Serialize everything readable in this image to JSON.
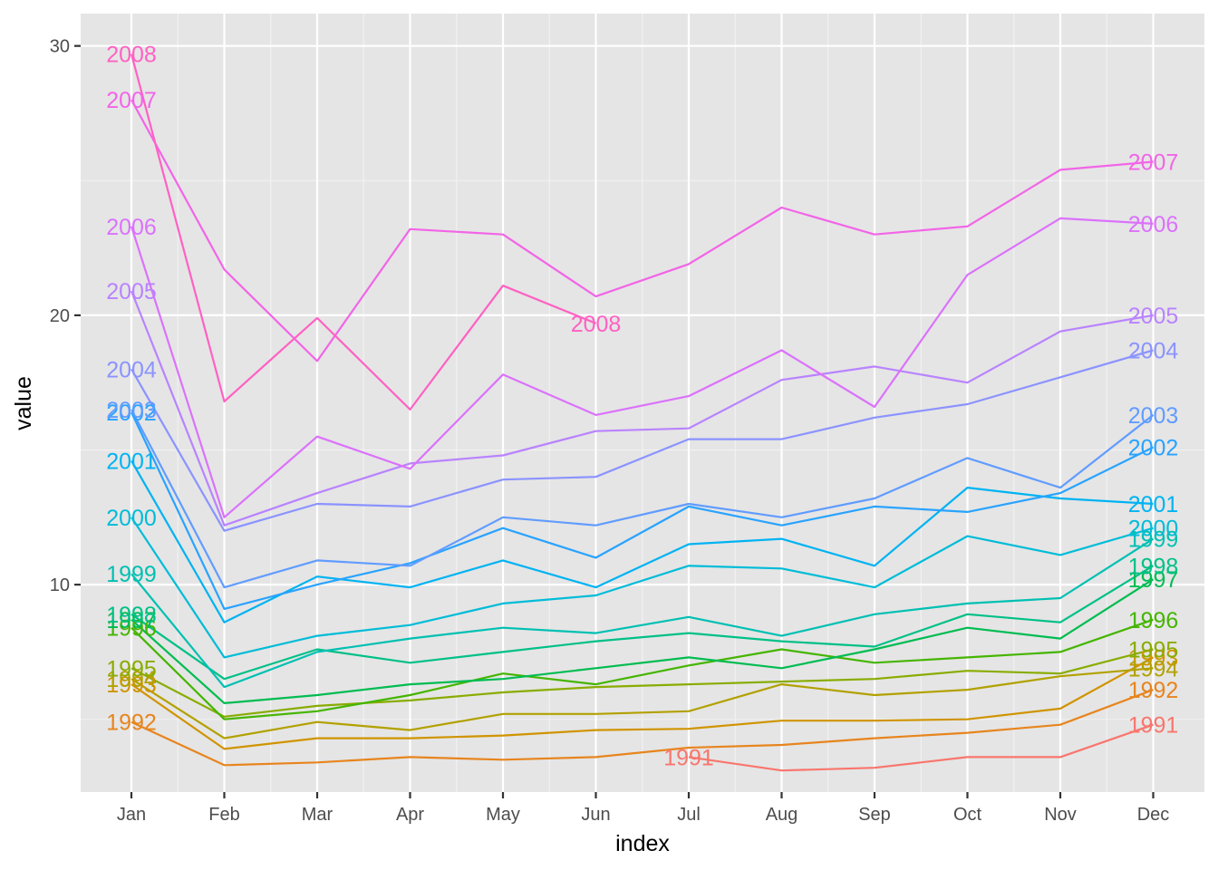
{
  "chart_data": {
    "type": "line",
    "title": "",
    "xlabel": "index",
    "ylabel": "value",
    "categories": [
      "Jan",
      "Feb",
      "Mar",
      "Apr",
      "May",
      "Jun",
      "Jul",
      "Aug",
      "Sep",
      "Oct",
      "Nov",
      "Dec"
    ],
    "y_ticks": [
      "10",
      "20",
      "30"
    ],
    "ylim": [
      2.3,
      31.2
    ],
    "grid": true,
    "legend": "none",
    "series": [
      {
        "name": "1991",
        "color": "#F8766D",
        "values": [
          null,
          null,
          null,
          null,
          null,
          null,
          3.6,
          3.1,
          3.2,
          3.6,
          3.6,
          4.8
        ],
        "label_start_index": 6,
        "label_end_index": 11
      },
      {
        "name": "1992",
        "color": "#E7851E",
        "values": [
          4.9,
          3.3,
          3.4,
          3.6,
          3.5,
          3.6,
          3.95,
          4.05,
          4.3,
          4.5,
          4.8,
          6.1
        ],
        "label_start_index": 0,
        "label_end_index": 11
      },
      {
        "name": "1993",
        "color": "#D09400",
        "values": [
          6.3,
          3.9,
          4.3,
          4.3,
          4.4,
          4.6,
          4.65,
          4.95,
          4.95,
          5.0,
          5.4,
          7.3
        ],
        "label_start_index": 0,
        "label_end_index": 11
      },
      {
        "name": "1994",
        "color": "#B2A100",
        "values": [
          6.5,
          4.3,
          4.9,
          4.6,
          5.2,
          5.2,
          5.3,
          6.3,
          5.9,
          6.1,
          6.6,
          6.9
        ],
        "label_start_index": 0,
        "label_end_index": 11
      },
      {
        "name": "1995",
        "color": "#89AC00",
        "values": [
          6.9,
          5.1,
          5.5,
          5.7,
          6.0,
          6.2,
          6.3,
          6.4,
          6.5,
          6.8,
          6.7,
          7.6
        ],
        "label_start_index": 0,
        "label_end_index": 11
      },
      {
        "name": "1996",
        "color": "#45B500",
        "values": [
          8.4,
          5.0,
          5.3,
          5.9,
          6.7,
          6.3,
          7.0,
          7.6,
          7.1,
          7.3,
          7.5,
          8.7
        ],
        "label_start_index": 0,
        "label_end_index": 11
      },
      {
        "name": "1997",
        "color": "#00BC51",
        "values": [
          8.7,
          5.6,
          5.9,
          6.3,
          6.5,
          6.9,
          7.3,
          6.9,
          7.6,
          8.4,
          8.0,
          10.2
        ],
        "label_start_index": 0,
        "label_end_index": 11
      },
      {
        "name": "1998",
        "color": "#00C087",
        "values": [
          8.9,
          6.5,
          7.6,
          7.1,
          7.5,
          7.9,
          8.2,
          7.9,
          7.7,
          8.9,
          8.6,
          10.7
        ],
        "label_start_index": 0,
        "label_end_index": 11
      },
      {
        "name": "1999",
        "color": "#00C0B2",
        "values": [
          10.4,
          6.2,
          7.5,
          8.0,
          8.4,
          8.2,
          8.8,
          8.1,
          8.9,
          9.3,
          9.5,
          11.7
        ],
        "label_start_index": 0,
        "label_end_index": 11
      },
      {
        "name": "2000",
        "color": "#00BCD8",
        "values": [
          12.5,
          7.3,
          8.1,
          8.5,
          9.3,
          9.6,
          10.7,
          10.6,
          9.9,
          11.8,
          11.1,
          12.1
        ],
        "label_start_index": 0,
        "label_end_index": 11
      },
      {
        "name": "2001",
        "color": "#00B3F2",
        "values": [
          14.6,
          8.6,
          10.3,
          9.9,
          10.9,
          9.9,
          11.5,
          11.7,
          10.7,
          13.6,
          13.2,
          13.0
        ],
        "label_start_index": 0,
        "label_end_index": 11
      },
      {
        "name": "2002",
        "color": "#29A3FF",
        "values": [
          16.4,
          9.1,
          10.0,
          10.8,
          12.1,
          11.0,
          12.9,
          12.2,
          12.9,
          12.7,
          13.4,
          15.1
        ],
        "label_start_index": 0,
        "label_end_index": 11
      },
      {
        "name": "2003",
        "color": "#619CFF",
        "values": [
          16.5,
          9.9,
          10.9,
          10.7,
          12.5,
          12.2,
          13.0,
          12.5,
          13.2,
          14.7,
          13.6,
          16.3
        ],
        "label_start_index": 0,
        "label_end_index": 11
      },
      {
        "name": "2004",
        "color": "#8B93FF",
        "values": [
          18.0,
          12.0,
          13.0,
          12.9,
          13.9,
          14.0,
          15.4,
          15.4,
          16.2,
          16.7,
          17.7,
          18.7
        ],
        "label_start_index": 0,
        "label_end_index": 11
      },
      {
        "name": "2005",
        "color": "#B983FF",
        "values": [
          20.9,
          12.2,
          13.4,
          14.5,
          14.8,
          15.7,
          15.8,
          17.6,
          18.1,
          17.5,
          19.4,
          20.0
        ],
        "label_start_index": 0,
        "label_end_index": 11
      },
      {
        "name": "2006",
        "color": "#DB72FB",
        "values": [
          23.3,
          12.5,
          15.5,
          14.3,
          17.8,
          16.3,
          17.0,
          18.7,
          16.6,
          21.5,
          23.6,
          23.4
        ],
        "label_start_index": 0,
        "label_end_index": 11
      },
      {
        "name": "2007",
        "color": "#F265E7",
        "values": [
          28.0,
          21.7,
          18.3,
          23.2,
          23.0,
          20.7,
          21.9,
          24.0,
          23.0,
          23.3,
          25.4,
          25.7
        ],
        "label_start_index": 0,
        "label_end_index": 11
      },
      {
        "name": "2008",
        "color": "#FF61C3",
        "values": [
          29.7,
          16.8,
          19.9,
          16.5,
          21.1,
          19.7,
          null,
          null,
          null,
          null,
          null,
          null
        ],
        "label_start_index": 0,
        "label_end_index": 5
      }
    ]
  }
}
